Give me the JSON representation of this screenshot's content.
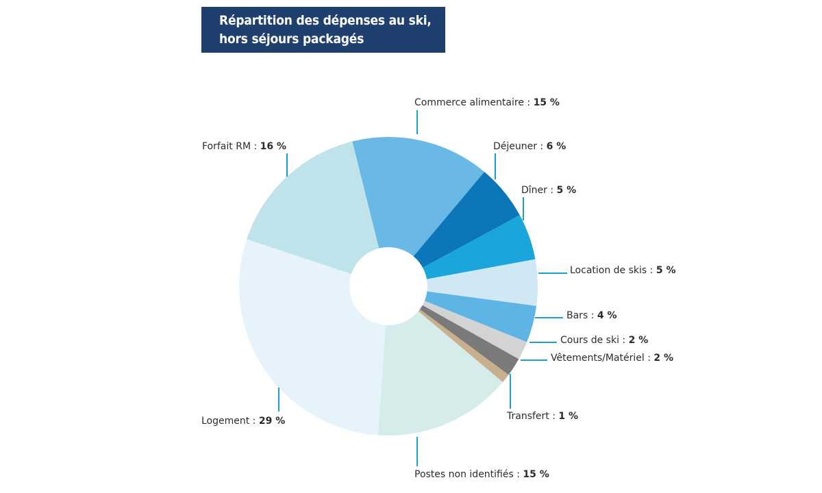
{
  "title": {
    "line1": "Répartition des dépenses au ski,",
    "line2": "hors séjours packagés"
  },
  "chart_data": {
    "type": "pie",
    "subtype": "donut",
    "title": "Répartition des dépenses au ski, hors séjours packagés",
    "unit": "%",
    "slices": [
      {
        "label": "Commerce alimentaire",
        "value": 15,
        "value_label": "15 %",
        "color": "#6ab8e6"
      },
      {
        "label": "Déjeuner",
        "value": 6,
        "value_label": "6 %",
        "color": "#0b76b8"
      },
      {
        "label": "Dîner",
        "value": 5,
        "value_label": "5 %",
        "color": "#1aa6da"
      },
      {
        "label": "Location de skis",
        "value": 5,
        "value_label": "5 %",
        "color": "#cfe8f3"
      },
      {
        "label": "Bars",
        "value": 4,
        "value_label": "4 %",
        "color": "#5fb4e6"
      },
      {
        "label": "Cours de ski",
        "value": 2,
        "value_label": "2 %",
        "color": "#d3d3d3"
      },
      {
        "label": "Vêtements/Matériel",
        "value": 2,
        "value_label": "2 %",
        "color": "#7a7a7a"
      },
      {
        "label": "Transfert",
        "value": 1,
        "value_label": "1 %",
        "color": "#c8b08e"
      },
      {
        "label": "Postes non identifiés",
        "value": 15,
        "value_label": "15 %",
        "color": "#d6eceb"
      },
      {
        "label": "Logement",
        "value": 29,
        "value_label": "29 %",
        "color": "#e6f3fb"
      },
      {
        "label": "Forfait RM",
        "value": 16,
        "value_label": "16 %",
        "color": "#bfe3ea"
      }
    ],
    "leader_color": "#1a9fd0"
  }
}
